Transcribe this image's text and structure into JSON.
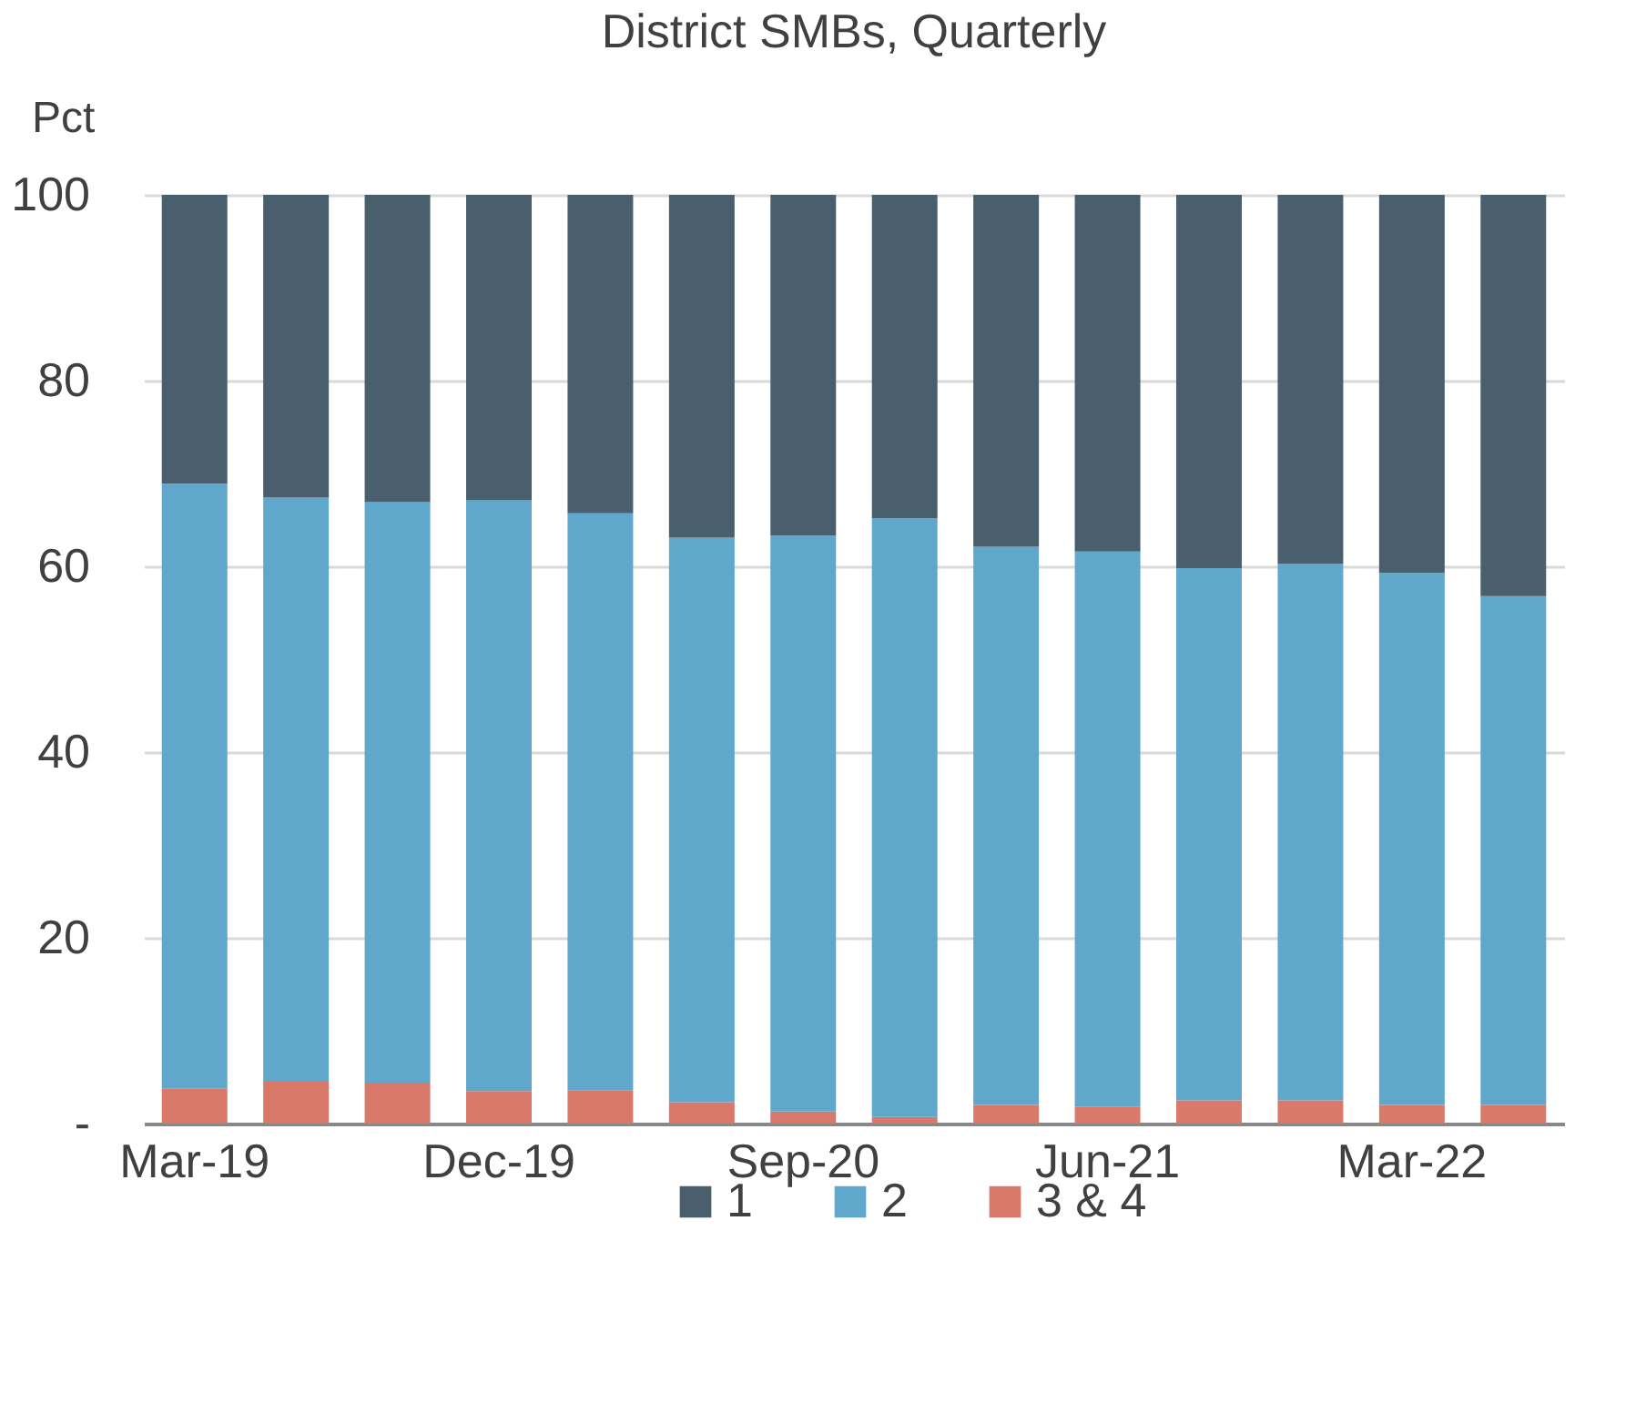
{
  "chart_data": {
    "type": "bar",
    "title": "District SMBs, Quarterly",
    "ylabel": "Pct",
    "stacked": true,
    "categories": [
      "Mar-19",
      null,
      null,
      "Dec-19",
      null,
      null,
      "Sep-20",
      null,
      null,
      "Jun-21",
      null,
      null,
      "Mar-22",
      null
    ],
    "series": [
      {
        "name": "3 & 4",
        "color": "#d9796a",
        "values": [
          3.8,
          4.6,
          4.4,
          3.5,
          3.6,
          2.3,
          1.3,
          0.7,
          2.0,
          1.8,
          2.5,
          2.5,
          2.0,
          2.0
        ]
      },
      {
        "name": "2",
        "color": "#5fa8cb",
        "values": [
          65.1,
          62.8,
          62.5,
          63.6,
          62.1,
          60.8,
          62.0,
          64.5,
          60.1,
          59.8,
          57.3,
          57.8,
          57.3,
          54.8
        ]
      },
      {
        "name": "1",
        "color": "#4a5f6d",
        "values": [
          31.1,
          32.6,
          33.1,
          32.9,
          34.3,
          36.9,
          36.7,
          34.8,
          37.9,
          38.4,
          40.2,
          39.7,
          40.7,
          43.2
        ]
      }
    ],
    "ylim": [
      0,
      100
    ],
    "yticks": [
      {
        "value": 0,
        "label": "-"
      },
      20,
      40,
      60,
      80,
      100
    ],
    "grid": "y",
    "legend": "bottom"
  }
}
